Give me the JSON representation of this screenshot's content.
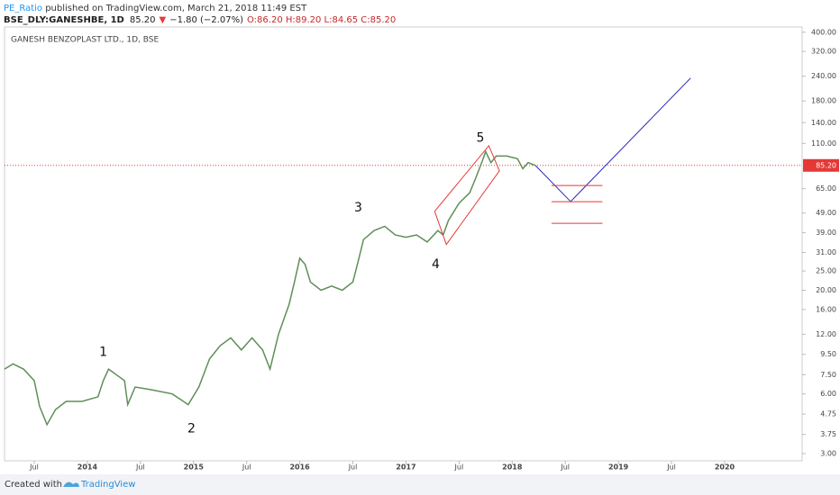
{
  "header": {
    "author": "PE_Ratio",
    "published": " published on TradingView.com, March 21, 2018 11:49 EST",
    "symbol": "BSE_DLY:GANESHBE, 1D",
    "price": "85.20",
    "arrow": "▼",
    "change": "−1.80 (−2.07%)",
    "ohlc": "O:86.20 H:89.20 L:84.65 C:85.20"
  },
  "footer": {
    "created": "Created with",
    "brand": "TradingView"
  },
  "chart_data": {
    "type": "line",
    "title": "GANESH BENZOPLAST LTD., 1D, BSE",
    "log_scale": true,
    "grid": false,
    "color": "#5f8f58",
    "x": [
      2013.22,
      2013.3,
      2013.4,
      2013.5,
      2013.55,
      2013.62,
      2013.7,
      2013.8,
      2013.95,
      2014.1,
      2014.15,
      2014.2,
      2014.35,
      2014.38,
      2014.45,
      2014.6,
      2014.8,
      2014.95,
      2015.05,
      2015.15,
      2015.25,
      2015.35,
      2015.45,
      2015.55,
      2015.65,
      2015.72,
      2015.8,
      2015.9,
      2015.95,
      2016.0,
      2016.05,
      2016.1,
      2016.2,
      2016.3,
      2016.4,
      2016.5,
      2016.55,
      2016.6,
      2016.7,
      2016.8,
      2016.9,
      2017.0,
      2017.1,
      2017.2,
      2017.3,
      2017.35,
      2017.4,
      2017.5,
      2017.6,
      2017.65,
      2017.72,
      2017.75,
      2017.8,
      2017.85,
      2017.95,
      2018.05,
      2018.1,
      2018.15,
      2018.22
    ],
    "values": [
      8.0,
      8.5,
      8.0,
      7.0,
      5.2,
      4.2,
      5.0,
      5.5,
      5.5,
      5.8,
      7.0,
      8.0,
      7.0,
      5.3,
      6.5,
      6.3,
      6.0,
      5.3,
      6.5,
      9.0,
      10.5,
      11.5,
      10.0,
      11.5,
      10.0,
      8.0,
      12.0,
      17,
      22,
      29,
      27,
      22,
      20,
      21,
      20,
      22,
      28,
      36,
      40,
      42,
      38,
      37,
      38,
      35,
      40,
      38,
      45,
      55,
      62,
      72,
      90,
      100,
      88,
      95,
      95,
      92,
      82,
      88,
      85.2
    ],
    "xlim": [
      2013.22,
      2020.73
    ],
    "ylim": [
      2.76,
      425
    ],
    "xticks": [
      {
        "value": 2013.5,
        "label": "Jul"
      },
      2014,
      {
        "value": 2014.5,
        "label": "Jul"
      },
      2015,
      {
        "value": 2015.5,
        "label": "Jul"
      },
      2016,
      {
        "value": 2016.5,
        "label": "Jul"
      },
      2017,
      {
        "value": 2017.5,
        "label": "Jul"
      },
      2018,
      {
        "value": 2018.5,
        "label": "Jul"
      },
      2019,
      {
        "value": 2019.5,
        "label": "Jul"
      },
      2020
    ],
    "yticks": [
      {
        "value": 400,
        "label": "400.00"
      },
      {
        "value": 320,
        "label": "320.00"
      },
      {
        "value": 240,
        "label": "240.00"
      },
      {
        "value": 180,
        "label": "180.00"
      },
      {
        "value": 140,
        "label": "140.00"
      },
      {
        "value": 110,
        "label": "110.00"
      },
      {
        "value": 65,
        "label": "65.00"
      },
      {
        "value": 49,
        "label": "49.00"
      },
      {
        "value": 39,
        "label": "39.00"
      },
      {
        "value": 31,
        "label": "31.00"
      },
      {
        "value": 25,
        "label": "25.00"
      },
      {
        "value": 20,
        "label": "20.00"
      },
      {
        "value": 16,
        "label": "16.00"
      },
      {
        "value": 12,
        "label": "12.00"
      },
      {
        "value": 9.5,
        "label": "9.50"
      },
      {
        "value": 7.5,
        "label": "7.50"
      },
      {
        "value": 6,
        "label": "6.00"
      },
      {
        "value": 4.75,
        "label": "4.75"
      },
      {
        "value": 3.75,
        "label": "3.75"
      },
      {
        "value": 3,
        "label": "3.00"
      }
    ],
    "last_price": {
      "value": 85.2,
      "label": "85.20",
      "color": "#e53935"
    },
    "drawings": [
      {
        "color": "#2b2bb5",
        "x": [
          2018.22,
          2018.55,
          2019.68
        ],
        "y": [
          85,
          56,
          235
        ]
      },
      {
        "color": "#e53935",
        "x": [
          2017.27,
          2017.78,
          2017.88,
          2017.38,
          2017.27
        ],
        "y": [
          50,
          107,
          80,
          34,
          50
        ]
      },
      {
        "color": "#e53935",
        "x": [
          2018.37,
          2018.85
        ],
        "y": [
          67.5,
          67.5
        ]
      },
      {
        "color": "#e53935",
        "x": [
          2018.37,
          2018.85
        ],
        "y": [
          55.9,
          55.9
        ]
      },
      {
        "color": "#e53935",
        "x": [
          2018.37,
          2018.85
        ],
        "y": [
          43.5,
          43.5
        ]
      }
    ],
    "annotations": [
      {
        "text": "1",
        "x": 2014.15,
        "y": 9.73
      },
      {
        "text": "2",
        "x": 2014.98,
        "y": 4.0
      },
      {
        "text": "3",
        "x": 2016.55,
        "y": 52
      },
      {
        "text": "4",
        "x": 2017.28,
        "y": 26.9
      },
      {
        "text": "5",
        "x": 2017.7,
        "y": 117
      }
    ]
  }
}
